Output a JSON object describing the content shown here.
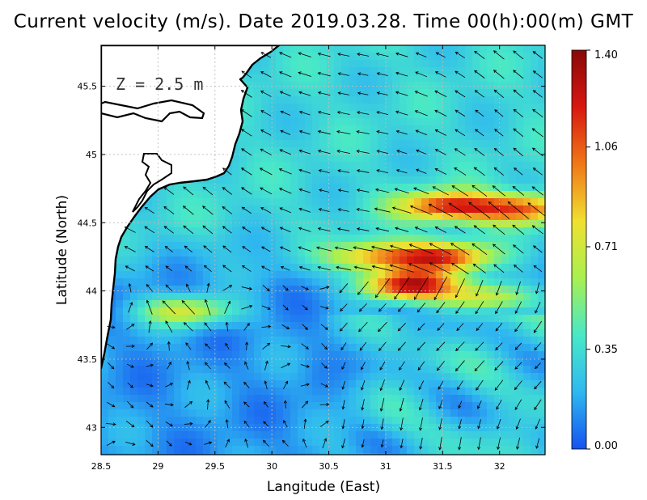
{
  "title": "Current velocity (m/s). Date 2019.03.28. Time 00(h):00(m) GMT",
  "depth_label": "Z = 2.5 m",
  "chart_data": {
    "type": "heatmap",
    "title": "Current velocity (m/s). Date 2019.03.28. Time 00(h):00(m) GMT",
    "xlabel": "Langitude (East)",
    "ylabel": "Latitude (North)",
    "xlim": [
      28.5,
      32.4
    ],
    "ylim": [
      42.8,
      45.8
    ],
    "x_ticks": [
      28.5,
      29,
      29.5,
      30,
      30.5,
      31,
      31.5,
      32
    ],
    "x_tick_labels": [
      "28.5",
      "29",
      "29.5",
      "30",
      "30.5",
      "31",
      "31.5",
      "32"
    ],
    "y_ticks": [
      43,
      43.5,
      44,
      44.5,
      45,
      45.5
    ],
    "y_tick_labels": [
      "43",
      "43.5",
      "44",
      "44.5",
      "45",
      "45.5"
    ],
    "grid": true,
    "colorbar": {
      "min": 0.0,
      "max": 1.4,
      "tick_values": [
        0.0,
        0.35,
        0.71,
        1.06,
        1.4
      ],
      "tick_labels": [
        "0.00",
        "0.35",
        "0.71",
        "1.06",
        "1.40"
      ],
      "colormap": [
        "#1652f0",
        "#2fb8f0",
        "#48e8c8",
        "#a8f050",
        "#f0e030",
        "#f07818",
        "#d81810",
        "#880808"
      ]
    },
    "jets": [
      {
        "lon": 31.2,
        "lat": 44.04,
        "speed": 1.4
      },
      {
        "lon": 31.5,
        "lat": 44.25,
        "speed": 1.2
      },
      {
        "lon": 31.55,
        "lat": 44.62,
        "speed": 1.15
      },
      {
        "lon": 32.2,
        "lat": 44.6,
        "speed": 1.05
      },
      {
        "lon": 30.9,
        "lat": 44.25,
        "speed": 0.95
      },
      {
        "lon": 31.9,
        "lat": 43.95,
        "speed": 0.9
      },
      {
        "lon": 29.25,
        "lat": 43.85,
        "speed": 0.85
      }
    ]
  }
}
